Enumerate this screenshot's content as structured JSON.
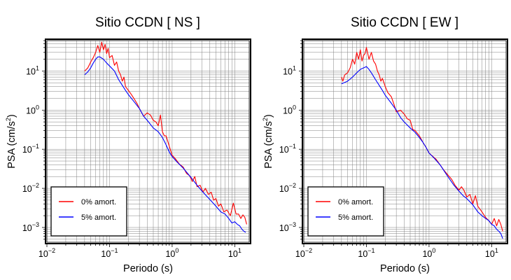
{
  "chart_data": [
    {
      "type": "line",
      "title": "Sitio CCDN [ NS ]",
      "xlabel": "Periodo (s)",
      "ylabel": "PSA (cm/s²)",
      "ylabel_main": "PSA (cm/s",
      "ylabel_exp": "2",
      "ylabel_close": ")",
      "xscale": "log",
      "yscale": "log",
      "xlim": [
        0.01,
        17
      ],
      "ylim": [
        0.00042,
        60
      ],
      "grid": true,
      "legend_position": "bottom-left",
      "x_ticks": [
        {
          "base": "10",
          "exp": "−2",
          "value": 0.01
        },
        {
          "base": "10",
          "exp": "−1",
          "value": 0.1
        },
        {
          "base": "10",
          "exp": "0",
          "value": 1
        },
        {
          "base": "10",
          "exp": "1",
          "value": 10
        }
      ],
      "y_ticks": [
        {
          "base": "10",
          "exp": "−3",
          "value": 0.001
        },
        {
          "base": "10",
          "exp": "−2",
          "value": 0.01
        },
        {
          "base": "10",
          "exp": "−1",
          "value": 0.1
        },
        {
          "base": "10",
          "exp": "0",
          "value": 1
        },
        {
          "base": "10",
          "exp": "1",
          "value": 10
        }
      ],
      "series": [
        {
          "name": "0% amort.",
          "color": "#ff0000",
          "points": [
            [
              0.04,
              10
            ],
            [
              0.045,
              12
            ],
            [
              0.05,
              17
            ],
            [
              0.055,
              22
            ],
            [
              0.06,
              30
            ],
            [
              0.065,
              45
            ],
            [
              0.07,
              30
            ],
            [
              0.075,
              55
            ],
            [
              0.08,
              35
            ],
            [
              0.085,
              48
            ],
            [
              0.09,
              28
            ],
            [
              0.095,
              38
            ],
            [
              0.1,
              22
            ],
            [
              0.11,
              25
            ],
            [
              0.12,
              14
            ],
            [
              0.13,
              17
            ],
            [
              0.14,
              10
            ],
            [
              0.15,
              8
            ],
            [
              0.16,
              5.5
            ],
            [
              0.17,
              7
            ],
            [
              0.18,
              4
            ],
            [
              0.2,
              3.2
            ],
            [
              0.22,
              2.6
            ],
            [
              0.25,
              1.9
            ],
            [
              0.28,
              1.4
            ],
            [
              0.3,
              1.1
            ],
            [
              0.35,
              0.7
            ],
            [
              0.4,
              0.85
            ],
            [
              0.45,
              0.75
            ],
            [
              0.5,
              0.55
            ],
            [
              0.55,
              0.5
            ],
            [
              0.6,
              0.4
            ],
            [
              0.65,
              0.75
            ],
            [
              0.7,
              0.28
            ],
            [
              0.75,
              0.22
            ],
            [
              0.8,
              0.22
            ],
            [
              0.9,
              0.12
            ],
            [
              1,
              0.07
            ],
            [
              1.1,
              0.06
            ],
            [
              1.3,
              0.042
            ],
            [
              1.5,
              0.035
            ],
            [
              1.7,
              0.024
            ],
            [
              1.9,
              0.021
            ],
            [
              2.1,
              0.015
            ],
            [
              2.3,
              0.02
            ],
            [
              2.5,
              0.011
            ],
            [
              2.8,
              0.012
            ],
            [
              3.1,
              0.008
            ],
            [
              3.4,
              0.01
            ],
            [
              3.8,
              0.007
            ],
            [
              4.2,
              0.008
            ],
            [
              4.6,
              0.005
            ],
            [
              5,
              0.0055
            ],
            [
              5.5,
              0.0035
            ],
            [
              6,
              0.004
            ],
            [
              6.7,
              0.0025
            ],
            [
              7.5,
              0.0028
            ],
            [
              8.5,
              0.002
            ],
            [
              9.5,
              0.0042
            ],
            [
              10.5,
              0.0022
            ],
            [
              11.5,
              0.0022
            ],
            [
              12.5,
              0.0017
            ],
            [
              13.5,
              0.0021
            ],
            [
              14.5,
              0.0018
            ],
            [
              15.5,
              0.0012
            ]
          ]
        },
        {
          "name": "5% amort.",
          "color": "#0000ff",
          "points": [
            [
              0.04,
              8
            ],
            [
              0.045,
              9.5
            ],
            [
              0.05,
              12
            ],
            [
              0.055,
              16
            ],
            [
              0.06,
              20
            ],
            [
              0.065,
              23
            ],
            [
              0.07,
              23
            ],
            [
              0.08,
              20
            ],
            [
              0.09,
              16
            ],
            [
              0.1,
              13.5
            ],
            [
              0.12,
              10
            ],
            [
              0.14,
              6
            ],
            [
              0.16,
              4.3
            ],
            [
              0.18,
              3.2
            ],
            [
              0.2,
              2.5
            ],
            [
              0.25,
              1.6
            ],
            [
              0.3,
              1.1
            ],
            [
              0.35,
              0.7
            ],
            [
              0.4,
              0.55
            ],
            [
              0.5,
              0.35
            ],
            [
              0.6,
              0.28
            ],
            [
              0.7,
              0.2
            ],
            [
              0.8,
              0.13
            ],
            [
              0.9,
              0.085
            ],
            [
              1,
              0.065
            ],
            [
              1.2,
              0.047
            ],
            [
              1.5,
              0.033
            ],
            [
              2,
              0.019
            ],
            [
              2.5,
              0.012
            ],
            [
              3,
              0.0085
            ],
            [
              3.5,
              0.0065
            ],
            [
              4,
              0.0052
            ],
            [
              5,
              0.0035
            ],
            [
              6,
              0.0025
            ],
            [
              7,
              0.0022
            ],
            [
              8,
              0.0017
            ],
            [
              9,
              0.0013
            ],
            [
              10,
              0.0014
            ],
            [
              11,
              0.0012
            ],
            [
              12,
              0.0011
            ],
            [
              13,
              0.0009
            ],
            [
              14,
              0.0008
            ],
            [
              15,
              0.00075
            ]
          ]
        }
      ]
    },
    {
      "type": "line",
      "title": "Sitio CCDN [ EW ]",
      "xlabel": "Periodo (s)",
      "ylabel": "PSA (cm/s²)",
      "ylabel_main": "PSA (cm/s",
      "ylabel_exp": "2",
      "ylabel_close": ")",
      "xscale": "log",
      "yscale": "log",
      "xlim": [
        0.01,
        17
      ],
      "ylim": [
        0.00042,
        60
      ],
      "grid": true,
      "legend_position": "bottom-left",
      "x_ticks": [
        {
          "base": "10",
          "exp": "−2",
          "value": 0.01
        },
        {
          "base": "10",
          "exp": "−1",
          "value": 0.1
        },
        {
          "base": "10",
          "exp": "0",
          "value": 1
        },
        {
          "base": "10",
          "exp": "1",
          "value": 10
        }
      ],
      "y_ticks": [
        {
          "base": "10",
          "exp": "−3",
          "value": 0.001
        },
        {
          "base": "10",
          "exp": "−2",
          "value": 0.01
        },
        {
          "base": "10",
          "exp": "−1",
          "value": 0.1
        },
        {
          "base": "10",
          "exp": "0",
          "value": 1
        },
        {
          "base": "10",
          "exp": "1",
          "value": 10
        }
      ],
      "series": [
        {
          "name": "0% amort.",
          "color": "#ff0000",
          "points": [
            [
              0.04,
              7
            ],
            [
              0.042,
              5.5
            ],
            [
              0.045,
              8
            ],
            [
              0.05,
              9
            ],
            [
              0.055,
              12
            ],
            [
              0.06,
              20
            ],
            [
              0.065,
              15
            ],
            [
              0.07,
              30
            ],
            [
              0.075,
              20
            ],
            [
              0.08,
              35
            ],
            [
              0.085,
              18
            ],
            [
              0.09,
              25
            ],
            [
              0.095,
              28
            ],
            [
              0.1,
              40
            ],
            [
              0.11,
              20
            ],
            [
              0.12,
              30
            ],
            [
              0.13,
              18
            ],
            [
              0.14,
              15
            ],
            [
              0.15,
              10
            ],
            [
              0.16,
              8
            ],
            [
              0.17,
              5.5
            ],
            [
              0.18,
              6.5
            ],
            [
              0.2,
              4
            ],
            [
              0.22,
              2.8
            ],
            [
              0.25,
              2.2
            ],
            [
              0.28,
              1.3
            ],
            [
              0.3,
              0.9
            ],
            [
              0.35,
              1
            ],
            [
              0.4,
              0.8
            ],
            [
              0.45,
              0.6
            ],
            [
              0.5,
              0.55
            ],
            [
              0.55,
              0.32
            ],
            [
              0.6,
              0.3
            ],
            [
              0.7,
              0.22
            ],
            [
              0.8,
              0.15
            ],
            [
              0.9,
              0.11
            ],
            [
              1,
              0.08
            ],
            [
              1.1,
              0.07
            ],
            [
              1.3,
              0.055
            ],
            [
              1.5,
              0.04
            ],
            [
              1.7,
              0.03
            ],
            [
              2,
              0.022
            ],
            [
              2.3,
              0.017
            ],
            [
              2.6,
              0.012
            ],
            [
              3,
              0.009
            ],
            [
              3.3,
              0.011
            ],
            [
              3.6,
              0.009
            ],
            [
              4,
              0.006
            ],
            [
              4.5,
              0.007
            ],
            [
              5,
              0.004
            ],
            [
              5.5,
              0.0065
            ],
            [
              6,
              0.0035
            ],
            [
              7,
              0.0025
            ],
            [
              8,
              0.0018
            ],
            [
              9,
              0.0015
            ],
            [
              10,
              0.0012
            ],
            [
              11,
              0.0017
            ],
            [
              12,
              0.0011
            ],
            [
              13,
              0.0016
            ],
            [
              14,
              0.0012
            ],
            [
              15,
              0.0008
            ]
          ]
        },
        {
          "name": "5% amort.",
          "color": "#0000ff",
          "points": [
            [
              0.04,
              4.7
            ],
            [
              0.05,
              5.5
            ],
            [
              0.06,
              7
            ],
            [
              0.07,
              9
            ],
            [
              0.08,
              11
            ],
            [
              0.09,
              12
            ],
            [
              0.1,
              13
            ],
            [
              0.11,
              11
            ],
            [
              0.12,
              9
            ],
            [
              0.14,
              6
            ],
            [
              0.16,
              4.3
            ],
            [
              0.18,
              3.2
            ],
            [
              0.2,
              2.4
            ],
            [
              0.25,
              1.5
            ],
            [
              0.3,
              1
            ],
            [
              0.35,
              0.65
            ],
            [
              0.4,
              0.5
            ],
            [
              0.5,
              0.35
            ],
            [
              0.6,
              0.27
            ],
            [
              0.7,
              0.2
            ],
            [
              0.8,
              0.15
            ],
            [
              0.9,
              0.11
            ],
            [
              1,
              0.08
            ],
            [
              1.2,
              0.06
            ],
            [
              1.5,
              0.04
            ],
            [
              2,
              0.02
            ],
            [
              2.5,
              0.012
            ],
            [
              3,
              0.0085
            ],
            [
              3.5,
              0.0065
            ],
            [
              4,
              0.0055
            ],
            [
              5,
              0.0038
            ],
            [
              6,
              0.0025
            ],
            [
              7,
              0.002
            ],
            [
              8,
              0.0017
            ],
            [
              9,
              0.0015
            ],
            [
              10,
              0.0012
            ],
            [
              11,
              0.0011
            ],
            [
              12,
              0.0009
            ],
            [
              13,
              0.0008
            ],
            [
              14,
              0.0007
            ],
            [
              15,
              0.00052
            ]
          ]
        }
      ]
    }
  ]
}
